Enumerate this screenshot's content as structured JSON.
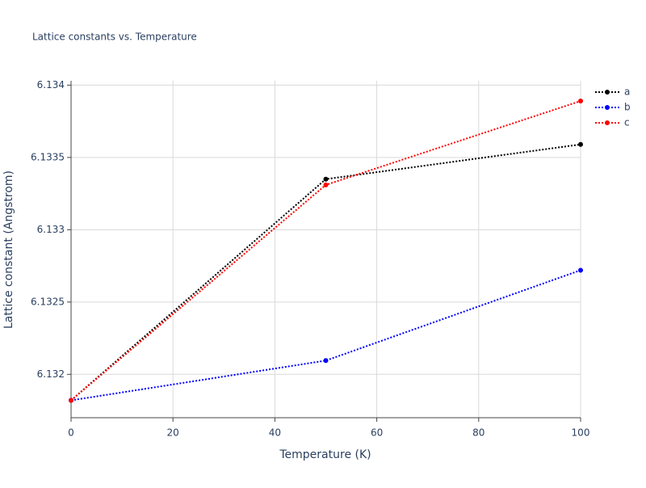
{
  "chart_data": {
    "type": "line",
    "title": "Lattice constants vs. Temperature",
    "x_label": "Temperature (K)",
    "y_label": "Lattice constant (Angstrom)",
    "x": [
      0,
      50,
      100
    ],
    "series": [
      {
        "name": "a",
        "color": "#000000",
        "values": [
          6.13182,
          6.13335,
          6.13359
        ]
      },
      {
        "name": "b",
        "color": "#0000ff",
        "values": [
          6.13182,
          6.132095,
          6.13272
        ]
      },
      {
        "name": "c",
        "color": "#ff0000",
        "values": [
          6.13182,
          6.13331,
          6.13389
        ]
      }
    ],
    "xlim": [
      0,
      100
    ],
    "xticks": [
      0,
      20,
      40,
      60,
      80,
      100
    ],
    "ylim": [
      6.1317,
      6.13403
    ],
    "yticks": [
      6.132,
      6.1325,
      6.133,
      6.1335,
      6.134
    ],
    "grid": true,
    "legend": "right"
  }
}
